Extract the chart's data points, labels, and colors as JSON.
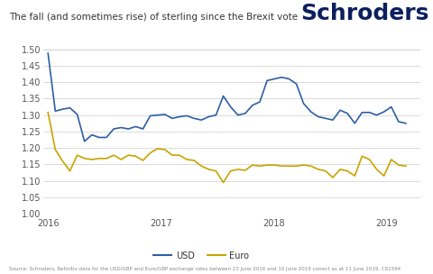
{
  "title": "The fall (and sometimes rise) of sterling since the Brexit vote",
  "brand": "Schroders",
  "source_text": "Source: Schroders, Refinitiv data for the USD/GBP and Euro/GBP exchange rates between 23 June 2016 and 10 June 2019 correct as at 11 June 2019. CS1594",
  "ylim": [
    1.0,
    1.5
  ],
  "yticks": [
    1.0,
    1.05,
    1.1,
    1.15,
    1.2,
    1.25,
    1.3,
    1.35,
    1.4,
    1.45,
    1.5
  ],
  "background_color": "#ffffff",
  "usd_color": "#2e5fa3",
  "euro_color": "#c8a400",
  "usd_label": "USD",
  "euro_label": "Euro",
  "usd_data": [
    1.488,
    1.312,
    1.318,
    1.322,
    1.302,
    1.22,
    1.24,
    1.232,
    1.232,
    1.258,
    1.262,
    1.258,
    1.265,
    1.258,
    1.298,
    1.3,
    1.302,
    1.29,
    1.295,
    1.298,
    1.29,
    1.285,
    1.295,
    1.3,
    1.358,
    1.325,
    1.3,
    1.305,
    1.33,
    1.34,
    1.405,
    1.41,
    1.415,
    1.41,
    1.395,
    1.335,
    1.31,
    1.295,
    1.29,
    1.285,
    1.315,
    1.305,
    1.275,
    1.308,
    1.308,
    1.3,
    1.31,
    1.325,
    1.28,
    1.275
  ],
  "euro_data": [
    1.308,
    1.195,
    1.16,
    1.13,
    1.178,
    1.168,
    1.165,
    1.168,
    1.168,
    1.178,
    1.165,
    1.178,
    1.175,
    1.162,
    1.185,
    1.198,
    1.195,
    1.178,
    1.178,
    1.165,
    1.162,
    1.145,
    1.135,
    1.13,
    1.095,
    1.13,
    1.135,
    1.132,
    1.148,
    1.145,
    1.148,
    1.148,
    1.145,
    1.145,
    1.145,
    1.148,
    1.145,
    1.135,
    1.13,
    1.11,
    1.135,
    1.13,
    1.115,
    1.175,
    1.165,
    1.135,
    1.115,
    1.165,
    1.148,
    1.145
  ],
  "x_tick_labels": [
    "2016",
    "2017",
    "2018",
    "2019"
  ],
  "x_tick_positions": [
    0,
    12,
    24,
    36
  ],
  "title_fontsize": 7.5,
  "brand_fontsize": 18,
  "brand_color": "#0c1f5e",
  "tick_fontsize": 7,
  "source_fontsize": 4.0,
  "legend_fontsize": 7
}
